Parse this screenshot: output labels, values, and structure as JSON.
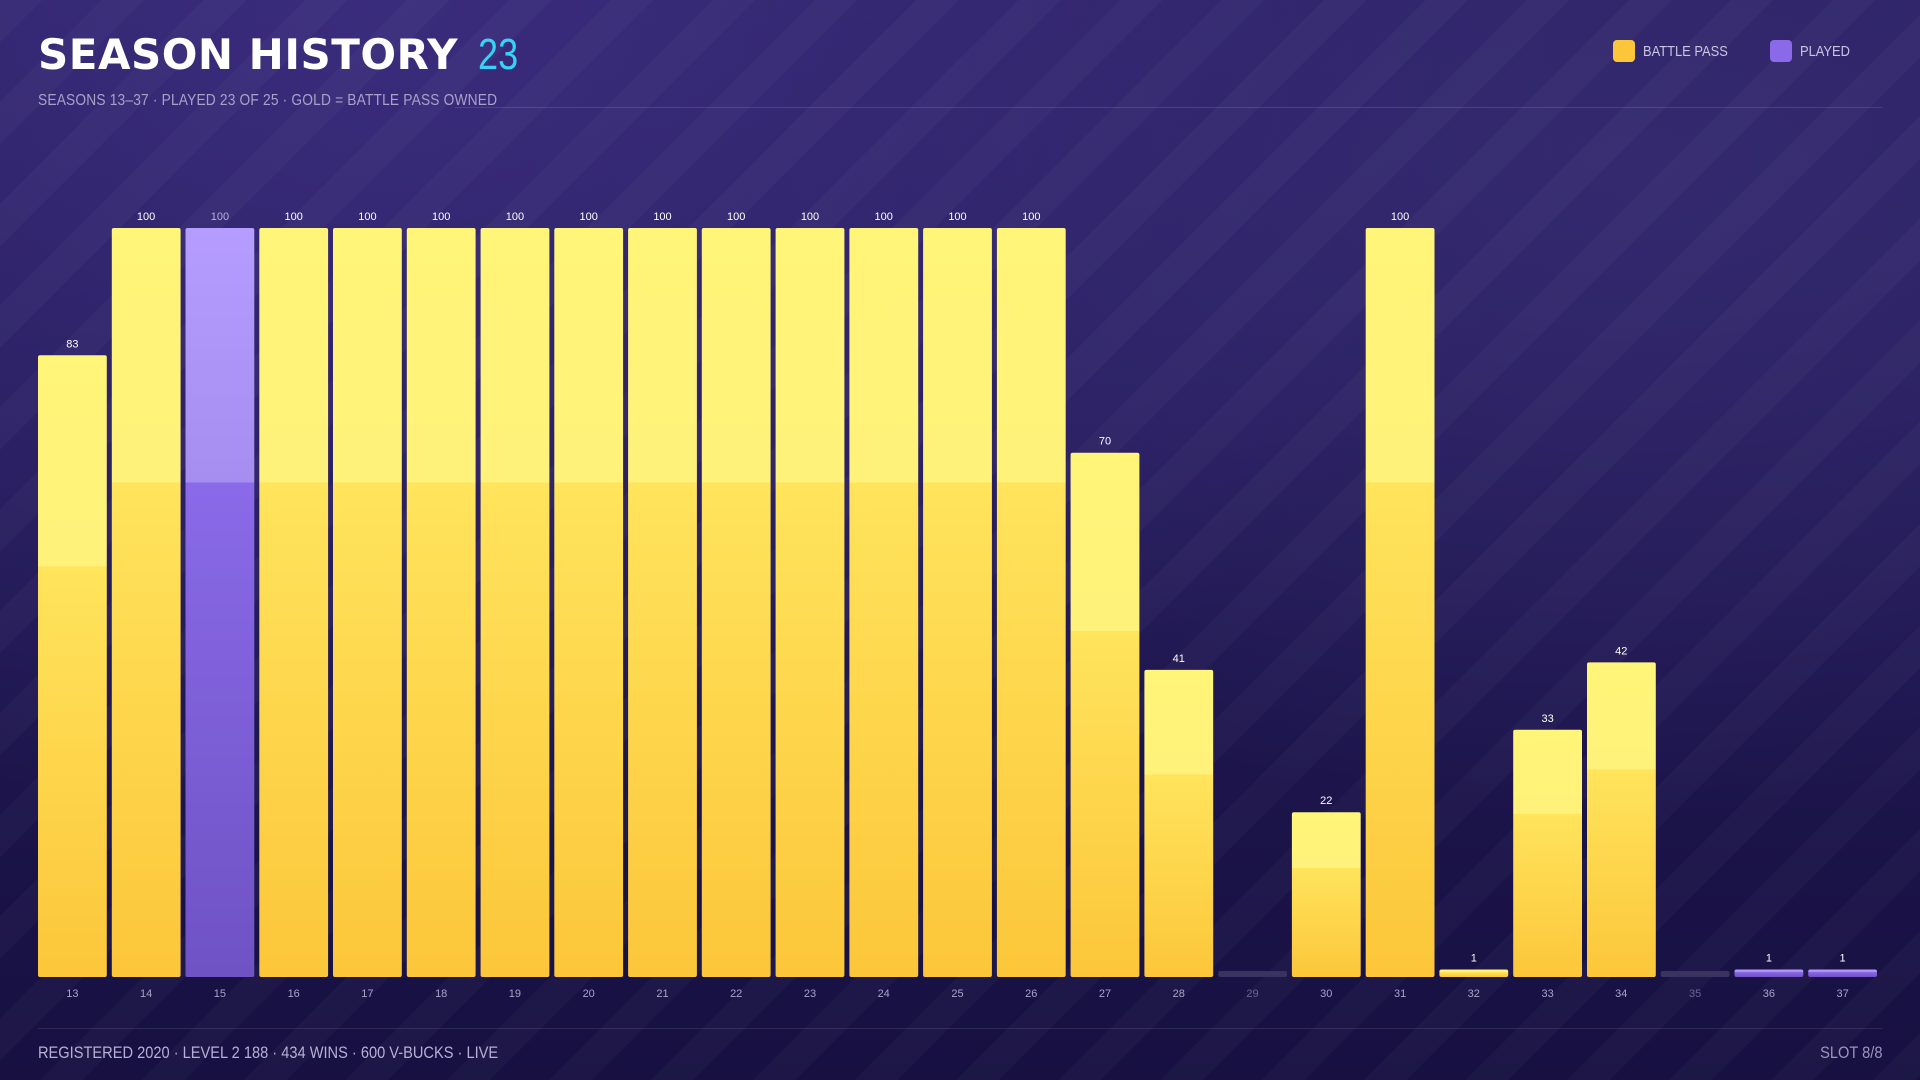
{
  "header": {
    "title": "SEASON HISTORY",
    "count": "23",
    "subtitle": "SEASONS 13–37 · PLAYED 23 OF 25 · GOLD = BATTLE PASS OWNED"
  },
  "legend": [
    {
      "label": "BATTLE PASS",
      "color": "#fcc63a"
    },
    {
      "label": "PLAYED",
      "color": "#8a6ae8"
    }
  ],
  "footer": {
    "stats": "REGISTERED 2020 · LEVEL 2 188 · 434 WINS · 600 V-BUCKS · LIVE",
    "slot": "SLOT 8/8"
  },
  "colors": {
    "battle_pass": "#fcc63a",
    "battle_pass_top": "#fff57a",
    "played": "#8a6ae8",
    "played_top": "#b59cff",
    "not_played": "#3a3360",
    "accent": "#33d4f5"
  },
  "chart_data": {
    "type": "bar",
    "title": "SEASON HISTORY",
    "categories": [
      "13",
      "14",
      "15",
      "16",
      "17",
      "18",
      "19",
      "20",
      "21",
      "22",
      "23",
      "24",
      "25",
      "26",
      "27",
      "28",
      "29",
      "30",
      "31",
      "32",
      "33",
      "34",
      "35",
      "36",
      "37"
    ],
    "values": [
      83,
      100,
      100,
      100,
      100,
      100,
      100,
      100,
      100,
      100,
      100,
      100,
      100,
      100,
      70,
      41,
      0,
      22,
      100,
      1,
      33,
      42,
      0,
      1,
      1
    ],
    "value_labels": [
      "83",
      "100",
      "100",
      "100",
      "100",
      "100",
      "100",
      "100",
      "100",
      "100",
      "100",
      "100",
      "100",
      "100",
      "70",
      "41",
      "",
      "22",
      "100",
      "1",
      "33",
      "42",
      "",
      "1",
      "1"
    ],
    "status": [
      "battle_pass",
      "battle_pass",
      "played",
      "battle_pass",
      "battle_pass",
      "battle_pass",
      "battle_pass",
      "battle_pass",
      "battle_pass",
      "battle_pass",
      "battle_pass",
      "battle_pass",
      "battle_pass",
      "battle_pass",
      "battle_pass",
      "battle_pass",
      "not_played",
      "battle_pass",
      "battle_pass",
      "battle_pass",
      "battle_pass",
      "battle_pass",
      "not_played",
      "played",
      "played"
    ],
    "ylim": [
      0,
      100
    ],
    "grid": false,
    "legend_position": "top-right"
  }
}
